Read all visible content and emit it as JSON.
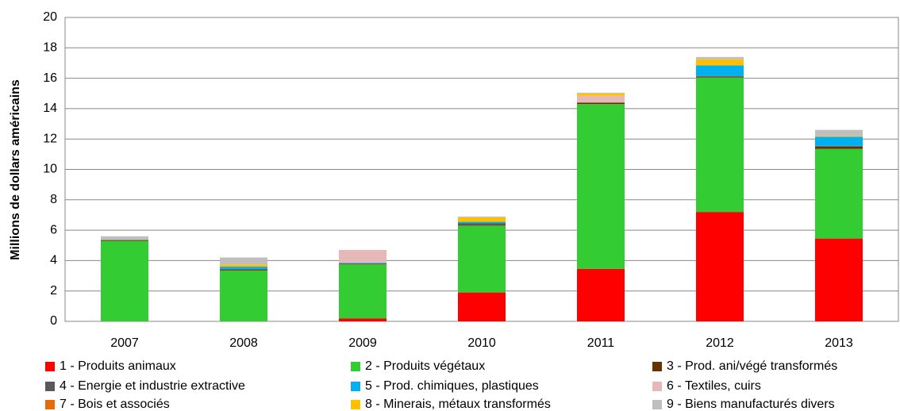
{
  "chart_data": {
    "type": "stacked_bar",
    "y_axis_label": "Millions de dollars américains",
    "categories": [
      "2007",
      "2008",
      "2009",
      "2010",
      "2011",
      "2012",
      "2013"
    ],
    "series": [
      {
        "name": "1 - Produits animaux",
        "color": "#ff0000",
        "values": [
          0,
          0,
          0.2,
          1.9,
          3.45,
          7.2,
          5.45
        ]
      },
      {
        "name": "2 - Produits végétaux",
        "color": "#33cc33",
        "values": [
          5.3,
          3.35,
          3.55,
          4.4,
          10.85,
          8.85,
          5.9
        ]
      },
      {
        "name": "3 - Prod. ani/végé transformés",
        "color": "#663300",
        "values": [
          0.05,
          0.05,
          0.05,
          0.05,
          0.1,
          0.05,
          0.15
        ]
      },
      {
        "name": "4 - Energie et industrie extractive",
        "color": "#595959",
        "values": [
          0,
          0.05,
          0,
          0.1,
          0,
          0.05,
          0.05
        ]
      },
      {
        "name": "5 - Prod. chimiques, plastiques",
        "color": "#00b0f0",
        "values": [
          0,
          0.15,
          0.05,
          0.1,
          0,
          0.7,
          0.6
        ]
      },
      {
        "name": "6 - Textiles, cuirs",
        "color": "#e6b9b8",
        "values": [
          0,
          0,
          0.85,
          0,
          0.45,
          0,
          0
        ]
      },
      {
        "name": "7 - Bois et associés",
        "color": "#e46c0a",
        "values": [
          0,
          0,
          0,
          0,
          0,
          0,
          0
        ]
      },
      {
        "name": "8 - Minerais, métaux transformés",
        "color": "#ffc000",
        "values": [
          0,
          0.15,
          0,
          0.3,
          0.15,
          0.4,
          0.05
        ]
      },
      {
        "name": "9 - Biens manufacturés divers",
        "color": "#bfbfbf",
        "values": [
          0.25,
          0.45,
          0,
          0.05,
          0.05,
          0.15,
          0.4
        ]
      }
    ],
    "ylim": [
      0,
      20
    ],
    "yticks": [
      0,
      2,
      4,
      6,
      8,
      10,
      12,
      14,
      16,
      18,
      20
    ],
    "grid": true
  }
}
